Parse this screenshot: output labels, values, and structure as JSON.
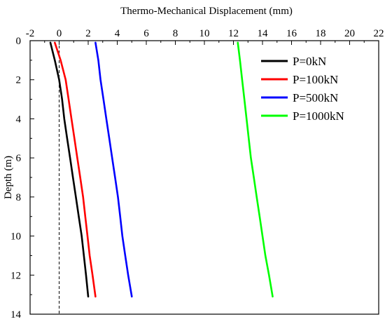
{
  "chart_data": {
    "type": "line",
    "xlabel": "Thermo-Mechanical Displacement (mm)",
    "ylabel": "Depth (m)",
    "xlim": [
      -2,
      22
    ],
    "ylim": [
      0,
      14
    ],
    "y_inverted": true,
    "x_axis_position": "top",
    "xticks": [
      -2,
      0,
      2,
      4,
      6,
      8,
      10,
      12,
      14,
      16,
      18,
      20,
      22
    ],
    "yticks": [
      0,
      2,
      4,
      6,
      8,
      10,
      12,
      14
    ],
    "grid": false,
    "legend_position": "top-right",
    "reference_line": {
      "x": 0,
      "style": "dashed"
    },
    "series": [
      {
        "name": "P=0kN",
        "color": "#000000",
        "points": [
          [
            -0.6,
            0.1
          ],
          [
            -0.3,
            1.0
          ],
          [
            0.0,
            2.0
          ],
          [
            0.2,
            3.0
          ],
          [
            0.35,
            4.0
          ],
          [
            0.55,
            5.0
          ],
          [
            0.75,
            6.0
          ],
          [
            0.95,
            7.0
          ],
          [
            1.15,
            8.0
          ],
          [
            1.35,
            9.0
          ],
          [
            1.55,
            10.0
          ],
          [
            1.7,
            11.0
          ],
          [
            1.85,
            12.0
          ],
          [
            2.0,
            13.1
          ]
        ]
      },
      {
        "name": "P=100kN",
        "color": "#ff0000",
        "points": [
          [
            -0.3,
            0.1
          ],
          [
            0.1,
            1.0
          ],
          [
            0.45,
            2.0
          ],
          [
            0.65,
            3.0
          ],
          [
            0.85,
            4.0
          ],
          [
            1.05,
            5.0
          ],
          [
            1.25,
            6.0
          ],
          [
            1.45,
            7.0
          ],
          [
            1.65,
            8.0
          ],
          [
            1.8,
            9.0
          ],
          [
            1.95,
            10.0
          ],
          [
            2.1,
            11.0
          ],
          [
            2.3,
            12.0
          ],
          [
            2.5,
            13.1
          ]
        ]
      },
      {
        "name": "P=500kN",
        "color": "#0000ff",
        "points": [
          [
            2.5,
            0.1
          ],
          [
            2.7,
            1.0
          ],
          [
            2.85,
            2.0
          ],
          [
            3.05,
            3.0
          ],
          [
            3.25,
            4.0
          ],
          [
            3.45,
            5.0
          ],
          [
            3.65,
            6.0
          ],
          [
            3.85,
            7.0
          ],
          [
            4.05,
            8.0
          ],
          [
            4.2,
            9.0
          ],
          [
            4.35,
            10.0
          ],
          [
            4.55,
            11.0
          ],
          [
            4.75,
            12.0
          ],
          [
            5.0,
            13.1
          ]
        ]
      },
      {
        "name": "P=1000kN",
        "color": "#00ff00",
        "points": [
          [
            12.3,
            0.1
          ],
          [
            12.45,
            1.0
          ],
          [
            12.6,
            2.0
          ],
          [
            12.75,
            3.0
          ],
          [
            12.9,
            4.0
          ],
          [
            13.05,
            5.0
          ],
          [
            13.2,
            6.0
          ],
          [
            13.4,
            7.0
          ],
          [
            13.6,
            8.0
          ],
          [
            13.8,
            9.0
          ],
          [
            14.0,
            10.0
          ],
          [
            14.2,
            11.0
          ],
          [
            14.45,
            12.0
          ],
          [
            14.7,
            13.1
          ]
        ]
      }
    ]
  }
}
